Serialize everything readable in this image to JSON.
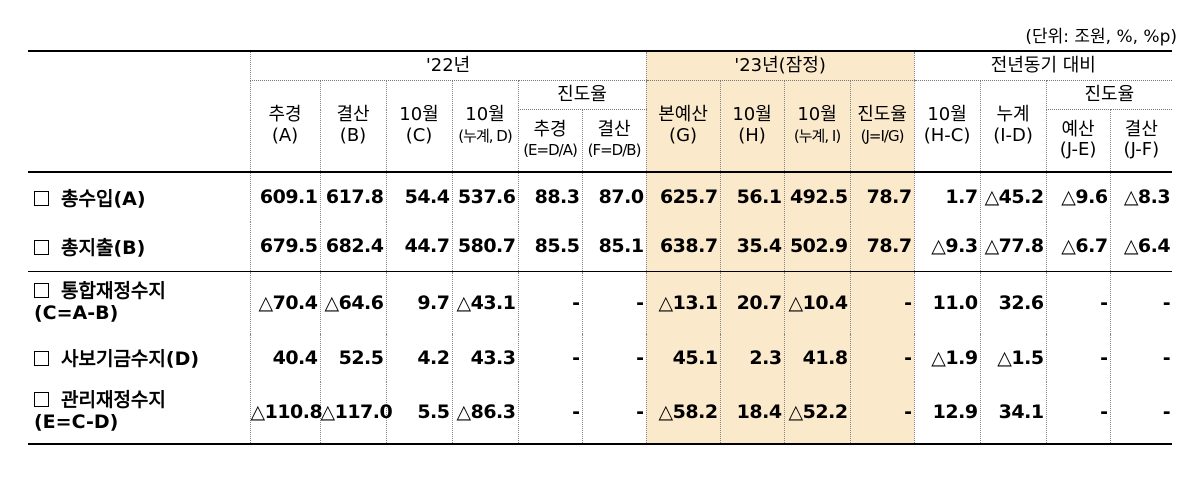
{
  "unit_note": "(단위: 조원, %, %p)",
  "groups": {
    "y22": "'22년",
    "y23": "'23년(잠정)",
    "yoy": "전년동기 대비"
  },
  "progress": {
    "y22": "진도율",
    "yoy": "진도율"
  },
  "columns": [
    {
      "l1": "추경",
      "l2": "(A)"
    },
    {
      "l1": "결산",
      "l2": "(B)"
    },
    {
      "l1": "10월",
      "l2": "(C)"
    },
    {
      "l1": "10월",
      "l2": "(누계, D)"
    },
    {
      "l1": "추경",
      "l2": "(E=D/A)"
    },
    {
      "l1": "결산",
      "l2": "(F=D/B)"
    },
    {
      "l1": "본예산",
      "l2": "(G)"
    },
    {
      "l1": "10월",
      "l2": "(H)"
    },
    {
      "l1": "10월",
      "l2": "(누계, I)"
    },
    {
      "l1": "진도율",
      "l2": "(J=I/G)"
    },
    {
      "l1": "10월",
      "l2": "(H-C)"
    },
    {
      "l1": "누계",
      "l2": "(I-D)"
    },
    {
      "l1": "예산",
      "l2": "(J-E)"
    },
    {
      "l1": "결산",
      "l2": "(J-F)"
    }
  ],
  "rows": [
    {
      "label": "총수입(A)",
      "values": [
        "609.1",
        "617.8",
        "54.4",
        "537.6",
        "88.3",
        "87.0",
        "625.7",
        "56.1",
        "492.5",
        "78.7",
        "1.7",
        "△45.2",
        "△9.6",
        "△8.3"
      ]
    },
    {
      "label": "총지출(B)",
      "values": [
        "679.5",
        "682.4",
        "44.7",
        "580.7",
        "85.5",
        "85.1",
        "638.7",
        "35.4",
        "502.9",
        "78.7",
        "△9.3",
        "△77.8",
        "△6.7",
        "△6.4"
      ]
    },
    {
      "label": "통합재정수지",
      "label2": "(C=A-B)",
      "values": [
        "△70.4",
        "△64.6",
        "9.7",
        "△43.1",
        "-",
        "-",
        "△13.1",
        "20.7",
        "△10.4",
        "-",
        "11.0",
        "32.6",
        "-",
        "-"
      ]
    },
    {
      "label": "사보기금수지(D)",
      "values": [
        "40.4",
        "52.5",
        "4.2",
        "43.3",
        "-",
        "-",
        "45.1",
        "2.3",
        "41.8",
        "-",
        "△1.9",
        "△1.5",
        "-",
        "-"
      ]
    },
    {
      "label": "관리재정수지",
      "label2": "(E=C-D)",
      "values": [
        "△110.8",
        "△117.0",
        "5.5",
        "△86.3",
        "-",
        "-",
        "△58.2",
        "18.4",
        "△52.2",
        "-",
        "12.9",
        "34.1",
        "-",
        "-"
      ]
    }
  ],
  "colors": {
    "highlight": "#fbe9cc"
  }
}
